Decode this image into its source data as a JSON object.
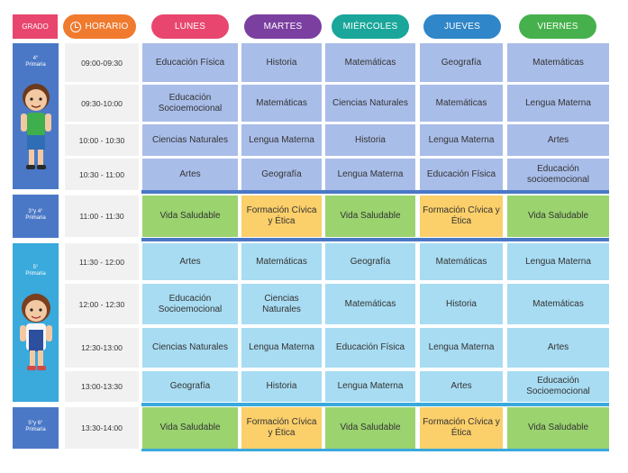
{
  "header": {
    "grado": "GRADO",
    "horario": "HORARIO",
    "days": [
      {
        "label": "LUNES",
        "color": "#e8466e"
      },
      {
        "label": "MARTES",
        "color": "#7b3fa0"
      },
      {
        "label": "MIÉRCOLES",
        "color": "#1aa69a"
      },
      {
        "label": "JUEVES",
        "color": "#2f86c8"
      },
      {
        "label": "VIERNES",
        "color": "#46b14c"
      }
    ]
  },
  "grades": [
    {
      "label": "4°\nPrimaria"
    },
    {
      "label": "3°y 4°\nPrimaria"
    },
    {
      "label": "5°\nPrimaria"
    },
    {
      "label": "5°y 6°\nPrimaria"
    }
  ],
  "rows": [
    {
      "time": "09:00-09:30",
      "cells": [
        "Educación Física",
        "Historia",
        "Matemáticas",
        "Geografía",
        "Matemáticas"
      ]
    },
    {
      "time": "09:30-10:00",
      "cells": [
        "Educación Socioemocional",
        "Matemáticas",
        "Ciencias Naturales",
        "Matemáticas",
        "Lengua Materna"
      ]
    },
    {
      "time": "10:00 - 10:30",
      "cells": [
        "Ciencias Naturales",
        "Lengua Materna",
        "Historia",
        "Lengua Materna",
        "Artes"
      ]
    },
    {
      "time": "10:30 - 11:00",
      "cells": [
        "Artes",
        "Geografía",
        "Lengua Materna",
        "Educación Física",
        "Educación socioemocional"
      ]
    },
    {
      "time": "11:00 - 11:30",
      "cells": [
        "Vida Saludable",
        "Formación Cívica y Ética",
        "Vida Saludable",
        "Formación Cívica y Ética",
        "Vida Saludable"
      ]
    },
    {
      "time": "11:30 - 12:00",
      "cells": [
        "Artes",
        "Matemáticas",
        "Geografía",
        "Matemáticas",
        "Lengua Materna"
      ]
    },
    {
      "time": "12:00 - 12:30",
      "cells": [
        "Educación Socioemocional",
        "Ciencias Naturales",
        "Matemáticas",
        "Historia",
        "Matemáticas"
      ]
    },
    {
      "time": "12:30-13:00",
      "cells": [
        "Ciencias Naturales",
        "Lengua Materna",
        "Educación Física",
        "Lengua Materna",
        "Artes"
      ]
    },
    {
      "time": "13:00-13:30",
      "cells": [
        "Geografía",
        "Historia",
        "Lengua Materna",
        "Artes",
        "Educación Socioemocional"
      ]
    },
    {
      "time": "13:30-14:00",
      "cells": [
        "Vida Saludable",
        "Formación Cívica y Ética",
        "Vida Saludable",
        "Formación Cívica y Ética",
        "Vida Saludable"
      ]
    }
  ]
}
